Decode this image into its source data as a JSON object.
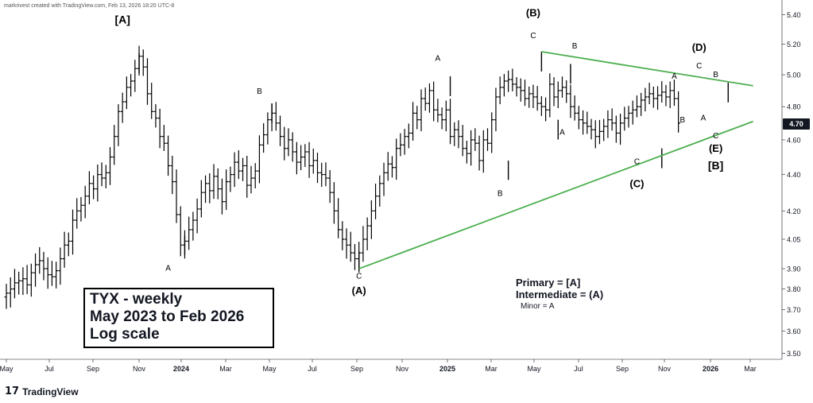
{
  "header": {
    "creator_text": "markrivest created with TradingView.com, Feb 13, 2026 18:20 UTC-8"
  },
  "branding": {
    "logo_mark": "17",
    "logo_text": "TradingView"
  },
  "info_box": {
    "line1": "TYX - weekly",
    "line2": "May 2023 to Feb 2026",
    "line3": "Log scale"
  },
  "legend": {
    "primary": "Primary = [A]",
    "intermediate": "Intermediate = (A)",
    "minor": "Minor = A"
  },
  "price_tag": {
    "value": "4.70",
    "bg_color": "#131722"
  },
  "chart_data": {
    "type": "ohlc",
    "scale": "log",
    "grid": false,
    "color_bars": "#000000",
    "color_trendlines": "#4caf50",
    "ylim": [
      3.45,
      5.43
    ],
    "y_ticks": [
      "3.50",
      "3.60",
      "3.70",
      "3.80",
      "3.90",
      "4.05",
      "4.20",
      "4.40",
      "4.60",
      "4.80",
      "5.00",
      "5.20",
      "5.40"
    ],
    "x_tick_labels": [
      "May",
      "Jul",
      "Sep",
      "Nov",
      "2024",
      "Mar",
      "May",
      "Jul",
      "Sep",
      "Nov",
      "2025",
      "Mar",
      "May",
      "Jul",
      "Sep",
      "Nov",
      "2026",
      "Mar"
    ],
    "x_tick_bold": [
      false,
      false,
      false,
      false,
      true,
      false,
      false,
      false,
      false,
      false,
      true,
      false,
      false,
      false,
      false,
      false,
      true,
      false
    ],
    "weekly_close_series": [
      3.78,
      3.8,
      3.83,
      3.84,
      3.85,
      3.82,
      3.88,
      3.92,
      3.94,
      3.9,
      3.87,
      3.86,
      3.89,
      3.95,
      4.02,
      4.04,
      4.15,
      4.2,
      4.23,
      4.28,
      4.35,
      4.32,
      4.4,
      4.38,
      4.41,
      4.5,
      4.62,
      4.77,
      4.83,
      4.92,
      4.96,
      5.04,
      5.12,
      5.05,
      4.88,
      4.77,
      4.73,
      4.62,
      4.58,
      4.45,
      4.36,
      4.18,
      4.02,
      4.04,
      4.1,
      4.15,
      4.21,
      4.3,
      4.35,
      4.31,
      4.39,
      4.32,
      4.25,
      4.36,
      4.4,
      4.47,
      4.42,
      4.45,
      4.34,
      4.38,
      4.42,
      4.57,
      4.63,
      4.72,
      4.76,
      4.7,
      4.62,
      4.55,
      4.6,
      4.53,
      4.47,
      4.5,
      4.53,
      4.45,
      4.48,
      4.41,
      4.4,
      4.38,
      4.3,
      4.2,
      4.1,
      4.05,
      4.02,
      3.98,
      3.95,
      3.98,
      4.05,
      4.12,
      4.2,
      4.28,
      4.35,
      4.41,
      4.46,
      4.44,
      4.55,
      4.57,
      4.62,
      4.64,
      4.76,
      4.72,
      4.85,
      4.82,
      4.9,
      4.78,
      4.75,
      4.72,
      4.78,
      4.62,
      4.66,
      4.62,
      4.55,
      4.52,
      4.6,
      4.58,
      4.48,
      4.6,
      4.58,
      4.72,
      4.86,
      4.92,
      4.96,
      4.97,
      4.94,
      4.92,
      4.9,
      4.85,
      4.88,
      4.86,
      4.82,
      4.8,
      4.78,
      4.94,
      4.86,
      4.9,
      4.92,
      4.88,
      4.8,
      4.76,
      4.72,
      4.7,
      4.68,
      4.66,
      4.62,
      4.65,
      4.68,
      4.72,
      4.7,
      4.64,
      4.7,
      4.73,
      4.76,
      4.78,
      4.8,
      4.84,
      4.86,
      4.88,
      4.85,
      4.87,
      4.89,
      4.86,
      4.9,
      4.85,
      4.7
    ],
    "extremes": [
      {
        "label": "[A]",
        "week": 32,
        "price": 5.14
      },
      {
        "label": "A",
        "week": 43,
        "price": 3.97
      },
      {
        "label": "B",
        "week": 64,
        "price": 4.82
      },
      {
        "label": "(A)",
        "week": 85,
        "price": 3.89
      },
      {
        "label": "A",
        "week": 107,
        "price": 4.99
      },
      {
        "label": "B",
        "week": 121,
        "price": 4.37
      },
      {
        "label": "(B)",
        "week": 129,
        "price": 5.15
      },
      {
        "label": "B",
        "week": 136,
        "price": 5.07
      },
      {
        "label": "A",
        "week": 133,
        "price": 4.72
      },
      {
        "label": "(C)",
        "week": 158,
        "price": 4.55
      },
      {
        "label": "(D)",
        "week": 174,
        "price": 4.95
      }
    ],
    "trendlines": [
      {
        "name": "upper",
        "points": [
          [
            129,
            5.15
          ],
          [
            180,
            4.93
          ]
        ]
      },
      {
        "name": "lower",
        "points": [
          [
            85,
            3.9
          ],
          [
            180,
            4.71
          ]
        ]
      }
    ],
    "wave_labels": [
      {
        "text": "[A]",
        "week": 28,
        "price": 5.34,
        "size": "large",
        "bold": true
      },
      {
        "text": "A",
        "week": 39,
        "price": 3.89,
        "size": "small"
      },
      {
        "text": "B",
        "week": 61,
        "price": 4.88,
        "size": "small"
      },
      {
        "text": "C",
        "week": 85,
        "price": 3.85,
        "size": "small"
      },
      {
        "text": "(A)",
        "week": 85,
        "price": 3.775,
        "size": "medium",
        "bold": true
      },
      {
        "text": "A",
        "week": 104,
        "price": 5.09,
        "size": "small"
      },
      {
        "text": "B",
        "week": 119,
        "price": 4.28,
        "size": "small"
      },
      {
        "text": "(B)",
        "week": 127,
        "price": 5.39,
        "size": "medium",
        "bold": true
      },
      {
        "text": "C",
        "week": 127,
        "price": 5.24,
        "size": "small"
      },
      {
        "text": "B",
        "week": 137,
        "price": 5.17,
        "size": "small"
      },
      {
        "text": "A",
        "week": 134,
        "price": 4.63,
        "size": "small"
      },
      {
        "text": "C",
        "week": 152,
        "price": 4.46,
        "size": "small"
      },
      {
        "text": "(C)",
        "week": 152,
        "price": 4.33,
        "size": "medium",
        "bold": true
      },
      {
        "text": "A",
        "week": 161,
        "price": 4.975,
        "size": "small"
      },
      {
        "text": "B",
        "week": 163,
        "price": 4.705,
        "size": "small"
      },
      {
        "text": "(D)",
        "week": 167,
        "price": 5.155,
        "size": "medium",
        "bold": true
      },
      {
        "text": "C",
        "week": 167,
        "price": 5.04,
        "size": "small"
      },
      {
        "text": "B",
        "week": 171,
        "price": 4.985,
        "size": "small"
      },
      {
        "text": "A",
        "week": 168,
        "price": 4.715,
        "size": "small"
      },
      {
        "text": "C",
        "week": 171,
        "price": 4.61,
        "size": "small"
      },
      {
        "text": "(E)",
        "week": 171,
        "price": 4.53,
        "size": "medium",
        "bold": true
      },
      {
        "text": "[B]",
        "week": 171,
        "price": 4.43,
        "size": "large",
        "bold": true
      }
    ]
  }
}
